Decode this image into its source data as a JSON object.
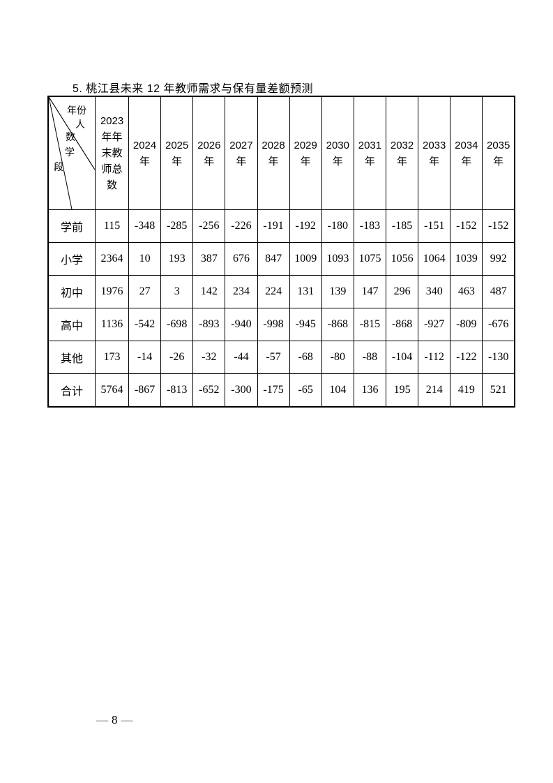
{
  "page": {
    "title": "5.  桃江县未来 12 年教师需求与保有量差额预测",
    "footer": {
      "left_dash": "—",
      "page_number": "8",
      "right_dash": "—"
    }
  },
  "table": {
    "corner": {
      "top_label": "年份",
      "middle_label_char1": "人",
      "middle_label_char2": "数",
      "bottom_label_char1": "学",
      "bottom_label_char2": "段"
    },
    "base_col_header": "2023\n年年\n末教\n师总\n数",
    "year_headers": [
      "2024\n年",
      "2025\n年",
      "2026\n年",
      "2027\n年",
      "2028\n年",
      "2029\n年",
      "2030\n年",
      "2031\n年",
      "2032\n年",
      "2033\n年",
      "2034\n年",
      "2035\n年"
    ],
    "rows": [
      {
        "label": "学前",
        "values": [
          "115",
          "-348",
          "-285",
          "-256",
          "-226",
          "-191",
          "-192",
          "-180",
          "-183",
          "-185",
          "-151",
          "-152",
          "-152"
        ]
      },
      {
        "label": "小学",
        "values": [
          "2364",
          "10",
          "193",
          "387",
          "676",
          "847",
          "1009",
          "1093",
          "1075",
          "1056",
          "1064",
          "1039",
          "992"
        ]
      },
      {
        "label": "初中",
        "values": [
          "1976",
          "27",
          "3",
          "142",
          "234",
          "224",
          "131",
          "139",
          "147",
          "296",
          "340",
          "463",
          "487"
        ]
      },
      {
        "label": "高中",
        "values": [
          "1136",
          "-542",
          "-698",
          "-893",
          "-940",
          "-998",
          "-945",
          "-868",
          "-815",
          "-868",
          "-927",
          "-809",
          "-676"
        ]
      },
      {
        "label": "其他",
        "values": [
          "173",
          "-14",
          "-26",
          "-32",
          "-44",
          "-57",
          "-68",
          "-80",
          "-88",
          "-104",
          "-112",
          "-122",
          "-130"
        ]
      },
      {
        "label": "合计",
        "values": [
          "5764",
          "-867",
          "-813",
          "-652",
          "-300",
          "-175",
          "-65",
          "104",
          "136",
          "195",
          "214",
          "419",
          "521"
        ]
      }
    ]
  }
}
